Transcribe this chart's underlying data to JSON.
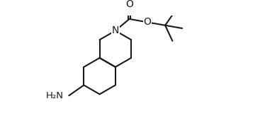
{
  "background_color": "#ffffff",
  "line_color": "#1a1a1a",
  "line_width": 1.5,
  "font_size": 9.5,
  "figsize": [
    3.74,
    1.74
  ],
  "dpi": 100,
  "xlim": [
    0,
    10
  ],
  "ylim": [
    0,
    5
  ]
}
